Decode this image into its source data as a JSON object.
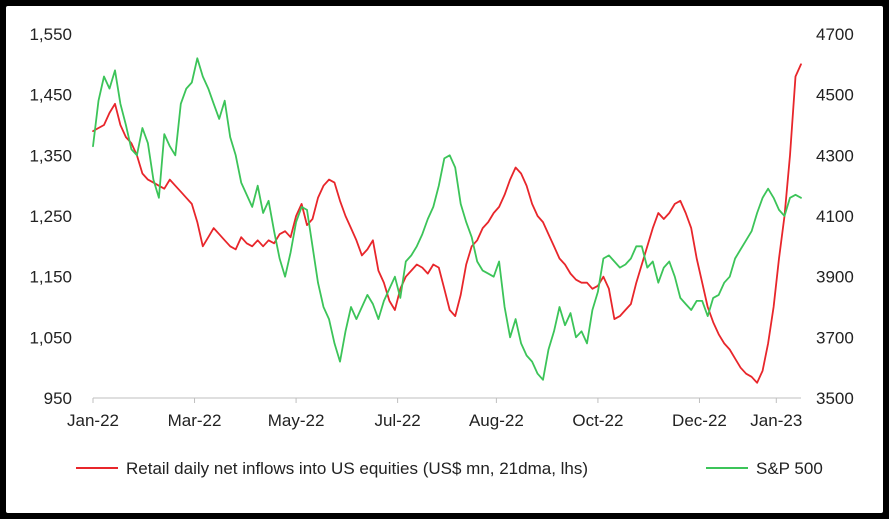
{
  "chart_data": {
    "type": "line",
    "title": "",
    "x_tick_labels": [
      "Jan-22",
      "Mar-22",
      "May-22",
      "Jul-22",
      "Aug-22",
      "Oct-22",
      "Dec-22",
      "Jan-23"
    ],
    "y_left": {
      "min": 950,
      "max": 1550,
      "tick_labels": [
        "1,550",
        "1,450",
        "1,350",
        "1,250",
        "1,150",
        "1,050",
        "950"
      ],
      "ticks": [
        1550,
        1450,
        1350,
        1250,
        1150,
        1050,
        950
      ]
    },
    "y_right": {
      "min": 3500,
      "max": 4700,
      "tick_labels": [
        "4700",
        "4500",
        "4300",
        "4100",
        "3900",
        "3700",
        "3500"
      ],
      "ticks": [
        4700,
        4500,
        4300,
        4100,
        3900,
        3700,
        3500
      ]
    },
    "grid": false,
    "legend_position": "bottom",
    "series": [
      {
        "name": "Retail daily net inflows into US equities (US$ mn, 21dma, lhs)",
        "axis": "left",
        "color": "#e8262b",
        "x": [
          0,
          2,
          4,
          6,
          8,
          10,
          12,
          14,
          16,
          18,
          20,
          22,
          24,
          26,
          28,
          30,
          32,
          34,
          36,
          38,
          40,
          42,
          44,
          46,
          48,
          50,
          52,
          54,
          56,
          58,
          60,
          62,
          64,
          66,
          68,
          70,
          72,
          74,
          76,
          78,
          80,
          82,
          84,
          86,
          88,
          90,
          92,
          94,
          96,
          98,
          100,
          102,
          104,
          106,
          108,
          110,
          112,
          114,
          116,
          118,
          120,
          122,
          124,
          126,
          128,
          130,
          132,
          134,
          136,
          138,
          140,
          142,
          144,
          146,
          148,
          150,
          152,
          154,
          156,
          158,
          160,
          162,
          164,
          166,
          168,
          170,
          172,
          174,
          176,
          178,
          180,
          182,
          184,
          186,
          188,
          190,
          192,
          194,
          196,
          198,
          200,
          202,
          204,
          206,
          208,
          210,
          212,
          214,
          216,
          218,
          220,
          222,
          224,
          226,
          228,
          230,
          232,
          234,
          236,
          238,
          240,
          242,
          244,
          246,
          248,
          250,
          252,
          254,
          256,
          258
        ],
        "values": [
          1390,
          1395,
          1400,
          1420,
          1435,
          1400,
          1380,
          1370,
          1350,
          1320,
          1310,
          1305,
          1300,
          1295,
          1310,
          1300,
          1290,
          1280,
          1270,
          1240,
          1200,
          1215,
          1230,
          1220,
          1210,
          1200,
          1195,
          1215,
          1205,
          1200,
          1210,
          1200,
          1210,
          1205,
          1220,
          1225,
          1215,
          1250,
          1270,
          1235,
          1245,
          1280,
          1300,
          1310,
          1305,
          1275,
          1250,
          1230,
          1210,
          1185,
          1195,
          1210,
          1160,
          1140,
          1110,
          1095,
          1130,
          1150,
          1160,
          1170,
          1165,
          1155,
          1170,
          1165,
          1130,
          1095,
          1085,
          1120,
          1170,
          1200,
          1210,
          1230,
          1240,
          1255,
          1265,
          1285,
          1310,
          1330,
          1320,
          1300,
          1270,
          1250,
          1240,
          1220,
          1200,
          1180,
          1170,
          1155,
          1145,
          1140,
          1140,
          1130,
          1135,
          1150,
          1130,
          1080,
          1085,
          1095,
          1105,
          1140,
          1170,
          1200,
          1230,
          1255,
          1245,
          1255,
          1270,
          1275,
          1255,
          1230,
          1180,
          1140,
          1100,
          1075,
          1055,
          1040,
          1030,
          1015,
          1000,
          990,
          985,
          975,
          995,
          1040,
          1100,
          1180,
          1250,
          1350,
          1480,
          1500
        ]
      },
      {
        "name": "S&P 500",
        "axis": "right",
        "color": "#3cc459",
        "x": [
          0,
          2,
          4,
          6,
          8,
          10,
          12,
          14,
          16,
          18,
          20,
          22,
          24,
          26,
          28,
          30,
          32,
          34,
          36,
          38,
          40,
          42,
          44,
          46,
          48,
          50,
          52,
          54,
          56,
          58,
          60,
          62,
          64,
          66,
          68,
          70,
          72,
          74,
          76,
          78,
          80,
          82,
          84,
          86,
          88,
          90,
          92,
          94,
          96,
          98,
          100,
          102,
          104,
          106,
          108,
          110,
          112,
          114,
          116,
          118,
          120,
          122,
          124,
          126,
          128,
          130,
          132,
          134,
          136,
          138,
          140,
          142,
          144,
          146,
          148,
          150,
          152,
          154,
          156,
          158,
          160,
          162,
          164,
          166,
          168,
          170,
          172,
          174,
          176,
          178,
          180,
          182,
          184,
          186,
          188,
          190,
          192,
          194,
          196,
          198,
          200,
          202,
          204,
          206,
          208,
          210,
          212,
          214,
          216,
          218,
          220,
          222,
          224,
          226,
          228,
          230,
          232,
          234,
          236,
          238,
          240,
          242,
          244,
          246,
          248,
          250,
          252,
          254,
          256,
          258
        ],
        "values": [
          4330,
          4480,
          4560,
          4520,
          4580,
          4470,
          4400,
          4320,
          4300,
          4390,
          4340,
          4220,
          4160,
          4370,
          4330,
          4300,
          4470,
          4520,
          4540,
          4620,
          4560,
          4520,
          4470,
          4420,
          4480,
          4360,
          4300,
          4210,
          4170,
          4130,
          4200,
          4110,
          4150,
          4050,
          3960,
          3900,
          3980,
          4080,
          4130,
          4120,
          4000,
          3880,
          3800,
          3760,
          3680,
          3620,
          3720,
          3800,
          3760,
          3800,
          3840,
          3810,
          3760,
          3820,
          3860,
          3900,
          3830,
          3950,
          3970,
          4000,
          4040,
          4090,
          4130,
          4200,
          4290,
          4300,
          4260,
          4140,
          4080,
          4030,
          3950,
          3920,
          3910,
          3900,
          3950,
          3800,
          3700,
          3760,
          3680,
          3640,
          3620,
          3580,
          3560,
          3660,
          3720,
          3800,
          3740,
          3780,
          3700,
          3720,
          3680,
          3790,
          3850,
          3960,
          3970,
          3950,
          3930,
          3940,
          3960,
          4000,
          4000,
          3930,
          3950,
          3880,
          3930,
          3950,
          3900,
          3830,
          3810,
          3790,
          3820,
          3820,
          3770,
          3830,
          3840,
          3880,
          3900,
          3960,
          3990,
          4020,
          4050,
          4110,
          4160,
          4190,
          4160,
          4120,
          4100,
          4160,
          4170,
          4160
        ]
      }
    ]
  }
}
